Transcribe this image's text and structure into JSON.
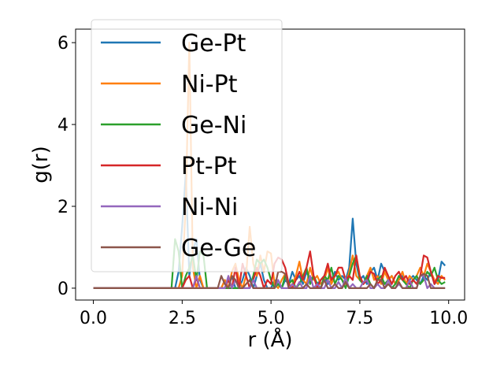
{
  "chart_data": {
    "type": "line",
    "title": "",
    "xlabel": "r (Å)",
    "ylabel": "g(r)",
    "xlim": [
      -0.5,
      10.45
    ],
    "ylim": [
      -0.29,
      6.33
    ],
    "xticks": [
      0.0,
      2.5,
      5.0,
      7.5,
      10.0
    ],
    "xtick_labels": [
      "0.0",
      "2.5",
      "5.0",
      "7.5",
      "10.0"
    ],
    "yticks": [
      0,
      2,
      4,
      6
    ],
    "ytick_labels": [
      "0",
      "2",
      "4",
      "6"
    ],
    "grid": false,
    "legend": "upper left",
    "x": [
      0.0,
      0.1,
      0.2,
      0.3,
      0.4,
      0.5,
      0.6,
      0.7,
      0.8,
      0.9,
      1.0,
      1.1,
      1.2,
      1.3,
      1.4,
      1.5,
      1.6,
      1.7,
      1.8,
      1.9,
      2.0,
      2.1,
      2.2,
      2.3,
      2.4,
      2.5,
      2.6,
      2.7,
      2.8,
      2.9,
      3.0,
      3.1,
      3.2,
      3.3,
      3.4,
      3.5,
      3.6,
      3.7,
      3.8,
      3.9,
      4.0,
      4.1,
      4.2,
      4.3,
      4.4,
      4.5,
      4.6,
      4.7,
      4.8,
      4.9,
      5.0,
      5.1,
      5.2,
      5.3,
      5.4,
      5.5,
      5.6,
      5.7,
      5.8,
      5.9,
      6.0,
      6.1,
      6.2,
      6.3,
      6.4,
      6.5,
      6.6,
      6.7,
      6.8,
      6.9,
      7.0,
      7.1,
      7.2,
      7.3,
      7.4,
      7.5,
      7.6,
      7.7,
      7.8,
      7.9,
      8.0,
      8.1,
      8.2,
      8.3,
      8.4,
      8.5,
      8.6,
      8.7,
      8.8,
      8.9,
      9.0,
      9.1,
      9.2,
      9.3,
      9.4,
      9.5,
      9.6,
      9.7,
      9.8,
      9.9
    ],
    "series": [
      {
        "name": "Ge-Pt",
        "color": "#1f77b4",
        "values": [
          0,
          0,
          0,
          0,
          0,
          0,
          0,
          0,
          0,
          0,
          0,
          0,
          0,
          0,
          0,
          0,
          0,
          0,
          0,
          0,
          0,
          0,
          0,
          0,
          0.4,
          1.5,
          2.8,
          0.3,
          0.9,
          1.2,
          0.2,
          0,
          0,
          0,
          0,
          0,
          0,
          0.2,
          0,
          0.3,
          0,
          0,
          0.2,
          0.5,
          0.3,
          0,
          0.3,
          0.6,
          0.2,
          0,
          0,
          0.2,
          0.1,
          0,
          0.2,
          0.1,
          0.4,
          0.2,
          0.3,
          0.1,
          0.4,
          0.2,
          0.3,
          0.1,
          0.2,
          0.3,
          0.1,
          0.2,
          0.4,
          0.2,
          0.3,
          0.2,
          0.5,
          1.7,
          0.6,
          0.2,
          0.3,
          0.1,
          0.4,
          0.5,
          0.2,
          0.6,
          0.4,
          0.2,
          0.3,
          0.1,
          0.2,
          0.3,
          0.1,
          0.2,
          0.3,
          0.2,
          0.1,
          0.3,
          0.2,
          0.4,
          0.1,
          0.2,
          0.65,
          0.55
        ]
      },
      {
        "name": "Ni-Pt",
        "color": "#ff7f0e",
        "values": [
          0,
          0,
          0,
          0,
          0,
          0,
          0,
          0,
          0,
          0,
          0,
          0,
          0,
          0,
          0,
          0,
          0,
          0,
          0,
          0,
          0,
          0,
          0,
          0,
          0,
          0.3,
          2.0,
          6.0,
          0.5,
          0,
          0.3,
          0,
          0,
          0,
          0,
          0,
          0,
          0.2,
          0,
          0.4,
          0.6,
          0.2,
          0,
          0.3,
          1.5,
          0.6,
          0.3,
          0.8,
          0.4,
          0.9,
          0.85,
          0.1,
          0,
          0.2,
          0.35,
          0,
          0.1,
          0.3,
          0.65,
          0.2,
          0.1,
          0.5,
          0.2,
          0.3,
          0.1,
          0.2,
          0.5,
          0.1,
          0.3,
          0.4,
          0.2,
          0.1,
          0.4,
          0.8,
          0.3,
          0.2,
          0.1,
          0.3,
          0.5,
          0.2,
          0.3,
          0.1,
          0.4,
          0.2,
          0.3,
          0.1,
          0.2,
          0.4,
          0.1,
          0.3,
          0.2,
          0.3,
          0.5,
          0.3,
          0.6,
          0.4,
          0.2,
          0.1,
          0.3,
          0.2
        ]
      },
      {
        "name": "Ge-Ni",
        "color": "#2ca02c",
        "values": [
          0,
          0,
          0,
          0,
          0,
          0,
          0,
          0,
          0,
          0,
          0,
          0,
          0,
          0,
          0,
          0,
          0,
          0,
          0,
          0,
          0,
          0,
          0,
          1.2,
          0.9,
          0,
          0.3,
          0.5,
          0.8,
          0.2,
          0.9,
          0.8,
          0,
          0,
          0,
          0,
          0,
          0,
          0,
          0,
          0,
          0,
          0,
          0,
          0,
          0.3,
          0.7,
          0.6,
          0.7,
          0.5,
          0.2,
          0,
          0.1,
          0,
          0.3,
          0.1,
          0.2,
          0,
          0.1,
          0.3,
          0.5,
          0.1,
          0.3,
          0.1,
          0,
          0.3,
          0.2,
          0.5,
          0.1,
          0.3,
          0.2,
          0,
          0.3,
          0.6,
          0.8,
          0.2,
          0.1,
          0.3,
          0.1,
          0,
          0.2,
          0.3,
          0.1,
          0.2,
          0,
          0.1,
          0.3,
          0.2,
          0.1,
          0,
          0.2,
          0.3,
          0.1,
          0.2,
          0.4,
          0.3,
          0.5,
          0.2,
          0.1,
          0.15
        ]
      },
      {
        "name": "Pt-Pt",
        "color": "#d62728",
        "values": [
          0,
          0,
          0,
          0,
          0,
          0,
          0,
          0,
          0,
          0,
          0,
          0,
          0,
          0,
          0,
          0,
          0,
          0,
          0,
          0,
          0,
          0,
          0,
          0,
          0,
          0,
          0.2,
          0.3,
          0,
          0.25,
          0,
          0,
          0,
          0,
          0,
          0,
          0,
          0,
          0.2,
          0,
          0.5,
          0,
          0.6,
          0.3,
          0,
          0.2,
          0.5,
          0.3,
          0,
          0.2,
          0.1,
          0.6,
          0.75,
          0.7,
          0.5,
          0.1,
          0,
          0.2,
          0.4,
          0.2,
          0.5,
          0.9,
          0.3,
          0,
          0.2,
          0.3,
          0.6,
          0.2,
          0.3,
          0.5,
          0.5,
          0.2,
          0.3,
          0.2,
          0.8,
          0.3,
          0.1,
          0.2,
          0.4,
          0.35,
          0.1,
          0.2,
          0.5,
          0.3,
          0.1,
          0.3,
          0.4,
          0.2,
          0.3,
          0.1,
          0.2,
          0.1,
          0.3,
          0.8,
          0.75,
          0.4,
          0.1,
          0.3,
          0.25,
          0.25
        ]
      },
      {
        "name": "Ni-Ni",
        "color": "#9467bd",
        "values": [
          0,
          0,
          0,
          0,
          0,
          0,
          0,
          0,
          0,
          0,
          0,
          0,
          0,
          0,
          0,
          0,
          0,
          0,
          0,
          0,
          0,
          0,
          0,
          0,
          0,
          0,
          0,
          0,
          0,
          0.3,
          0,
          0,
          0,
          0,
          0,
          0,
          0,
          0,
          0.3,
          0,
          0.2,
          0,
          0,
          0,
          0,
          0.2,
          0,
          0,
          0,
          0,
          0,
          0,
          0.2,
          0,
          0,
          0,
          0.1,
          0,
          0.15,
          0,
          0,
          0.3,
          0,
          0.1,
          0,
          0,
          0.2,
          0,
          0,
          0.15,
          0,
          0.25,
          0,
          0.1,
          0,
          0,
          0.15,
          0.2,
          0,
          0,
          0.1,
          0,
          0,
          0.2,
          0,
          0,
          0.1,
          0,
          0,
          0.2,
          0,
          0,
          0.3,
          0.3,
          0,
          0.1,
          0,
          0,
          0,
          0
        ]
      },
      {
        "name": "Ge-Ge",
        "color": "#8c564b",
        "values": [
          0,
          0,
          0,
          0,
          0,
          0,
          0,
          0,
          0,
          0,
          0,
          0,
          0,
          0,
          0,
          0,
          0,
          0,
          0,
          0,
          0,
          0,
          0,
          0,
          0,
          0,
          0,
          0,
          0,
          0,
          0,
          0,
          0,
          0,
          0,
          0,
          0.3,
          0.1,
          0,
          0.3,
          0.2,
          0,
          0,
          0.1,
          0.2,
          0,
          0,
          0,
          0,
          0,
          0,
          0,
          0.4,
          0.4,
          0.35,
          0,
          0,
          0,
          0,
          0,
          0.1,
          0,
          0,
          0,
          0,
          0.2,
          0,
          0,
          0.1,
          0,
          0,
          0.15,
          0,
          0,
          0,
          0,
          0,
          0,
          0.1,
          0,
          0.2,
          0.2,
          0,
          0.1,
          0,
          0,
          0.15,
          0,
          0,
          0,
          0,
          0,
          0.3,
          0.35,
          0.3,
          0,
          0,
          0,
          0,
          0
        ]
      }
    ]
  }
}
